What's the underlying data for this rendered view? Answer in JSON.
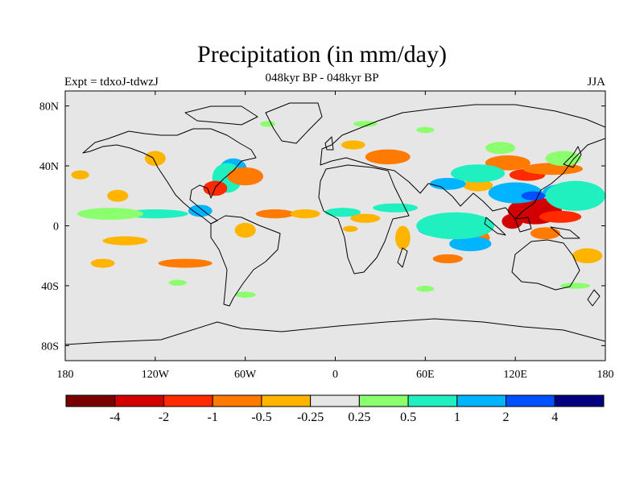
{
  "title": "Precipitation (in mm/day)",
  "subtitle": "048kyr BP - 048kyr BP",
  "left_label": "Expt = tdxoJ-tdwzJ",
  "right_label": "JJA",
  "chart_data": {
    "type": "heatmap",
    "projection": "cylindrical-equidistant",
    "lon_range": [
      -180,
      180
    ],
    "lat_range": [
      -90,
      90
    ],
    "x_ticks": [
      "180",
      "120W",
      "60W",
      "0",
      "60E",
      "120E",
      "180"
    ],
    "x_tick_values": [
      -180,
      -120,
      -60,
      0,
      60,
      120,
      180
    ],
    "y_ticks": [
      "80N",
      "40N",
      "0",
      "40S",
      "80S"
    ],
    "y_tick_values": [
      80,
      40,
      0,
      -40,
      -80
    ],
    "background_color": "#e6e6e6",
    "colorbar": {
      "labels": [
        "-4",
        "-2",
        "-1",
        "-0.5",
        "-0.25",
        "0.25",
        "0.5",
        "1",
        "2",
        "4"
      ],
      "colors": [
        "#7a0000",
        "#d20000",
        "#ff2a00",
        "#ff7a00",
        "#ffb400",
        "#e6e6e6",
        "#8cff6e",
        "#20f0c0",
        "#00b4ff",
        "#0050ff",
        "#000080"
      ]
    },
    "anomaly_regions": [
      {
        "lon": 133,
        "lat": 10,
        "rx": 18,
        "ry": 9,
        "color": "#d20000"
      },
      {
        "lon": 118,
        "lat": 3,
        "rx": 7,
        "ry": 5,
        "color": "#d20000"
      },
      {
        "lon": 150,
        "lat": 6,
        "rx": 14,
        "ry": 4,
        "color": "#ff2a00"
      },
      {
        "lon": 128,
        "lat": 34,
        "rx": 12,
        "ry": 4,
        "color": "#ff2a00"
      },
      {
        "lon": 145,
        "lat": 38,
        "rx": 20,
        "ry": 4,
        "color": "#ff7a00"
      },
      {
        "lon": 115,
        "lat": 42,
        "rx": 15,
        "ry": 5,
        "color": "#ff7a00"
      },
      {
        "lon": 95,
        "lat": 27,
        "rx": 10,
        "ry": 4,
        "color": "#ffb400"
      },
      {
        "lon": 95,
        "lat": -8,
        "rx": 8,
        "ry": 5,
        "color": "#ff7a00"
      },
      {
        "lon": 140,
        "lat": -5,
        "rx": 10,
        "ry": 4,
        "color": "#ff7a00"
      },
      {
        "lon": 168,
        "lat": -20,
        "rx": 10,
        "ry": 5,
        "color": "#ffb400"
      },
      {
        "lon": 120,
        "lat": 22,
        "rx": 18,
        "ry": 7,
        "color": "#00b4ff"
      },
      {
        "lon": 152,
        "lat": 22,
        "rx": 14,
        "ry": 6,
        "color": "#00b4ff"
      },
      {
        "lon": 132,
        "lat": 20,
        "rx": 8,
        "ry": 3,
        "color": "#0050ff"
      },
      {
        "lon": 75,
        "lat": 28,
        "rx": 12,
        "ry": 4,
        "color": "#00b4ff"
      },
      {
        "lon": 75,
        "lat": -2,
        "rx": 20,
        "ry": 6,
        "color": "#00b4ff"
      },
      {
        "lon": 90,
        "lat": -12,
        "rx": 14,
        "ry": 5,
        "color": "#00b4ff"
      },
      {
        "lon": 160,
        "lat": 20,
        "rx": 20,
        "ry": 10,
        "color": "#20f0c0"
      },
      {
        "lon": 80,
        "lat": 0,
        "rx": 26,
        "ry": 9,
        "color": "#20f0c0"
      },
      {
        "lon": 95,
        "lat": 35,
        "rx": 18,
        "ry": 6,
        "color": "#20f0c0"
      },
      {
        "lon": 152,
        "lat": 45,
        "rx": 12,
        "ry": 5,
        "color": "#8cff6e"
      },
      {
        "lon": 110,
        "lat": 52,
        "rx": 10,
        "ry": 4,
        "color": "#8cff6e"
      },
      {
        "lon": -68,
        "lat": 38,
        "rx": 9,
        "ry": 7,
        "color": "#00b4ff"
      },
      {
        "lon": -72,
        "lat": 32,
        "rx": 10,
        "ry": 10,
        "color": "#20f0c0"
      },
      {
        "lon": -80,
        "lat": 25,
        "rx": 8,
        "ry": 5,
        "color": "#ff2a00"
      },
      {
        "lon": -60,
        "lat": 33,
        "rx": 12,
        "ry": 6,
        "color": "#ff7a00"
      },
      {
        "lon": -120,
        "lat": 45,
        "rx": 7,
        "ry": 5,
        "color": "#ffb400"
      },
      {
        "lon": -145,
        "lat": 20,
        "rx": 7,
        "ry": 4,
        "color": "#ffb400"
      },
      {
        "lon": -120,
        "lat": 8,
        "rx": 22,
        "ry": 3,
        "color": "#20f0c0"
      },
      {
        "lon": -150,
        "lat": 8,
        "rx": 22,
        "ry": 4,
        "color": "#8cff6e"
      },
      {
        "lon": -90,
        "lat": 10,
        "rx": 8,
        "ry": 4,
        "color": "#00b4ff"
      },
      {
        "lon": -140,
        "lat": -10,
        "rx": 15,
        "ry": 3,
        "color": "#ffb400"
      },
      {
        "lon": -100,
        "lat": -25,
        "rx": 18,
        "ry": 3,
        "color": "#ff7a00"
      },
      {
        "lon": -155,
        "lat": -25,
        "rx": 8,
        "ry": 3,
        "color": "#ffb400"
      },
      {
        "lon": -105,
        "lat": -38,
        "rx": 6,
        "ry": 2,
        "color": "#8cff6e"
      },
      {
        "lon": -60,
        "lat": -3,
        "rx": 7,
        "ry": 5,
        "color": "#ffb400"
      },
      {
        "lon": -60,
        "lat": -46,
        "rx": 7,
        "ry": 2,
        "color": "#8cff6e"
      },
      {
        "lon": -40,
        "lat": 8,
        "rx": 13,
        "ry": 3,
        "color": "#ff7a00"
      },
      {
        "lon": -20,
        "lat": 8,
        "rx": 10,
        "ry": 3,
        "color": "#ffb400"
      },
      {
        "lon": 5,
        "lat": 9,
        "rx": 12,
        "ry": 3,
        "color": "#20f0c0"
      },
      {
        "lon": 40,
        "lat": 12,
        "rx": 15,
        "ry": 3,
        "color": "#20f0c0"
      },
      {
        "lon": 20,
        "lat": 5,
        "rx": 10,
        "ry": 3,
        "color": "#ffb400"
      },
      {
        "lon": 10,
        "lat": -2,
        "rx": 5,
        "ry": 2,
        "color": "#ffb400"
      },
      {
        "lon": 45,
        "lat": -8,
        "rx": 5,
        "ry": 8,
        "color": "#ffb400"
      },
      {
        "lon": 35,
        "lat": 46,
        "rx": 15,
        "ry": 5,
        "color": "#ff7a00"
      },
      {
        "lon": 12,
        "lat": 54,
        "rx": 8,
        "ry": 3,
        "color": "#ffb400"
      },
      {
        "lon": 20,
        "lat": 68,
        "rx": 8,
        "ry": 2,
        "color": "#8cff6e"
      },
      {
        "lon": -45,
        "lat": 68,
        "rx": 5,
        "ry": 2,
        "color": "#8cff6e"
      },
      {
        "lon": 60,
        "lat": 64,
        "rx": 6,
        "ry": 2,
        "color": "#8cff6e"
      },
      {
        "lon": 75,
        "lat": -22,
        "rx": 10,
        "ry": 3,
        "color": "#ff7a00"
      },
      {
        "lon": -170,
        "lat": 34,
        "rx": 6,
        "ry": 3,
        "color": "#ffb400"
      },
      {
        "lon": 160,
        "lat": -40,
        "rx": 10,
        "ry": 2,
        "color": "#8cff6e"
      },
      {
        "lon": 60,
        "lat": -42,
        "rx": 6,
        "ry": 2,
        "color": "#8cff6e"
      }
    ]
  }
}
